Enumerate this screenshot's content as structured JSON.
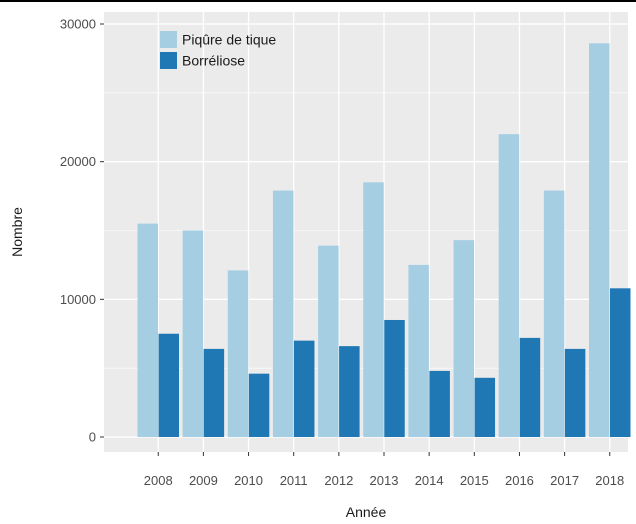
{
  "chart_data": {
    "type": "bar",
    "categories": [
      "2008",
      "2009",
      "2010",
      "2011",
      "2012",
      "2013",
      "2014",
      "2015",
      "2016",
      "2017",
      "2018"
    ],
    "series": [
      {
        "name": "Piqûre de tique",
        "color": "#a6cee3",
        "values": [
          15500,
          15000,
          12100,
          17900,
          13900,
          18500,
          12500,
          14300,
          22000,
          17900,
          28600
        ]
      },
      {
        "name": "Borréliose",
        "color": "#1f78b4",
        "values": [
          7500,
          6400,
          4600,
          7000,
          6600,
          8500,
          4800,
          4300,
          7200,
          6400,
          10800
        ]
      }
    ],
    "xlabel": "Année",
    "ylabel": "Nombre",
    "ylim": [
      0,
      30000
    ],
    "yticks": [
      0,
      10000,
      20000,
      30000
    ],
    "ytick_labels": [
      "0",
      "10000",
      "20000",
      "30000"
    ],
    "grid": true,
    "legend_position": "top-left",
    "panel_background": "#ebebeb",
    "grid_color": "#ffffff"
  }
}
